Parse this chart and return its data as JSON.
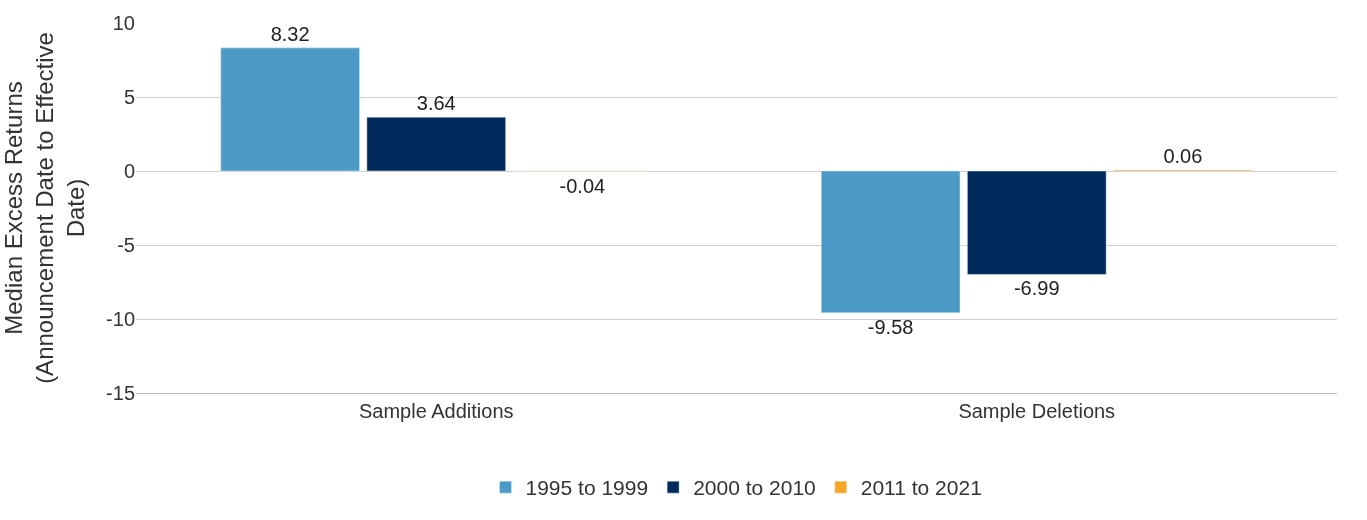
{
  "chart_data": {
    "type": "bar",
    "ylabel": "Median Excess Returns (Announcement Date to Effective Date)",
    "categories": [
      "Sample Additions",
      "Sample Deletions"
    ],
    "series": [
      {
        "name": "1995 to 1999",
        "color": "#4b9bc6",
        "values": [
          8.32,
          -9.58
        ]
      },
      {
        "name": "2000 to 2010",
        "color": "#002a5c",
        "values": [
          3.64,
          -6.99
        ]
      },
      {
        "name": "2011 to 2021",
        "color": "#f5a623",
        "values": [
          -0.04,
          0.06
        ]
      }
    ],
    "ylim": [
      -15,
      10
    ],
    "yticks": [
      -15,
      -10,
      -5,
      0,
      5,
      10
    ],
    "grid": "y",
    "legend": "bottom",
    "data_labels": true
  }
}
